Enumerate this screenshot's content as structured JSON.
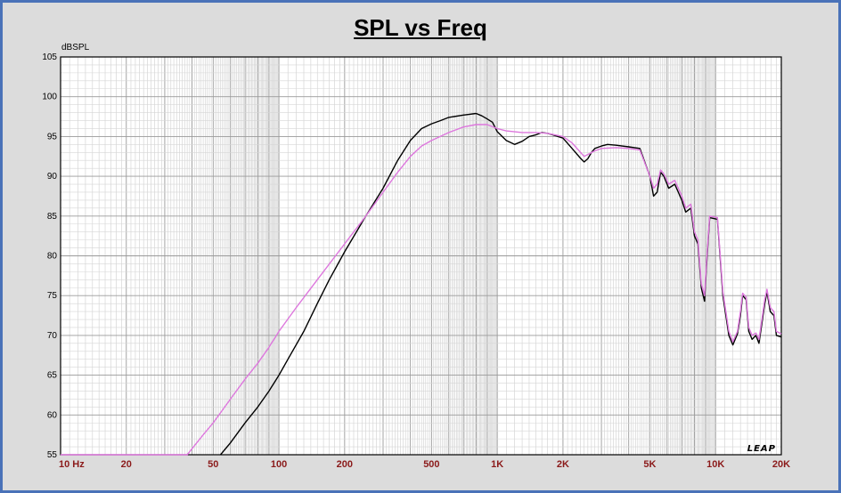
{
  "chart_data": {
    "type": "line",
    "title": "SPL vs Freq",
    "ylabel": "dBSPL",
    "xlabel": "",
    "x_scale": "log",
    "xlim": [
      10,
      20000
    ],
    "ylim": [
      55,
      105
    ],
    "grid": true,
    "y_ticks": [
      55,
      60,
      65,
      70,
      75,
      80,
      85,
      90,
      95,
      100,
      105
    ],
    "x_ticks": [
      {
        "value": 10,
        "label": "10  Hz"
      },
      {
        "value": 20,
        "label": "20"
      },
      {
        "value": 50,
        "label": "50"
      },
      {
        "value": 100,
        "label": "100"
      },
      {
        "value": 200,
        "label": "200"
      },
      {
        "value": 500,
        "label": "500"
      },
      {
        "value": 1000,
        "label": "1K"
      },
      {
        "value": 2000,
        "label": "2K"
      },
      {
        "value": 5000,
        "label": "5K"
      },
      {
        "value": 10000,
        "label": "10K"
      },
      {
        "value": 20000,
        "label": "20K"
      }
    ],
    "series": [
      {
        "color": "#000000",
        "points": [
          [
            54,
            55
          ],
          [
            60,
            56.5
          ],
          [
            70,
            59
          ],
          [
            80,
            61
          ],
          [
            90,
            63
          ],
          [
            100,
            65
          ],
          [
            110,
            67
          ],
          [
            130,
            70.5
          ],
          [
            150,
            74
          ],
          [
            170,
            77
          ],
          [
            200,
            80.5
          ],
          [
            250,
            85
          ],
          [
            300,
            88.5
          ],
          [
            350,
            92
          ],
          [
            400,
            94.5
          ],
          [
            450,
            96
          ],
          [
            500,
            96.6
          ],
          [
            550,
            97
          ],
          [
            600,
            97.4
          ],
          [
            700,
            97.7
          ],
          [
            800,
            97.9
          ],
          [
            850,
            97.6
          ],
          [
            900,
            97.2
          ],
          [
            950,
            96.8
          ],
          [
            1000,
            95.6
          ],
          [
            1100,
            94.5
          ],
          [
            1200,
            94
          ],
          [
            1300,
            94.4
          ],
          [
            1400,
            95
          ],
          [
            1500,
            95.2
          ],
          [
            1600,
            95.5
          ],
          [
            1700,
            95.4
          ],
          [
            1800,
            95.2
          ],
          [
            2000,
            94.8
          ],
          [
            2200,
            93.5
          ],
          [
            2400,
            92.3
          ],
          [
            2500,
            91.8
          ],
          [
            2600,
            92.2
          ],
          [
            2700,
            93
          ],
          [
            2800,
            93.5
          ],
          [
            3000,
            93.8
          ],
          [
            3200,
            94
          ],
          [
            3500,
            93.9
          ],
          [
            4000,
            93.7
          ],
          [
            4500,
            93.5
          ],
          [
            5000,
            90
          ],
          [
            5200,
            87.5
          ],
          [
            5400,
            88
          ],
          [
            5600,
            90.5
          ],
          [
            5800,
            90
          ],
          [
            6100,
            88.5
          ],
          [
            6500,
            89
          ],
          [
            7000,
            87
          ],
          [
            7300,
            85.5
          ],
          [
            7700,
            86
          ],
          [
            8000,
            82.5
          ],
          [
            8300,
            81.5
          ],
          [
            8600,
            76
          ],
          [
            8900,
            74.3
          ],
          [
            9100,
            79
          ],
          [
            9400,
            84.8
          ],
          [
            10200,
            84.6
          ],
          [
            10800,
            75
          ],
          [
            11500,
            70
          ],
          [
            12000,
            68.8
          ],
          [
            12600,
            70.2
          ],
          [
            13000,
            72.5
          ],
          [
            13300,
            75
          ],
          [
            13800,
            74.5
          ],
          [
            14200,
            70.5
          ],
          [
            14700,
            69.5
          ],
          [
            15300,
            70
          ],
          [
            15800,
            69
          ],
          [
            16300,
            71.5
          ],
          [
            16800,
            74
          ],
          [
            17200,
            75.5
          ],
          [
            17800,
            73
          ],
          [
            18500,
            72.5
          ],
          [
            19000,
            70
          ],
          [
            20000,
            69.8
          ]
        ]
      },
      {
        "color": "#dd77dd",
        "points": [
          [
            10,
            55
          ],
          [
            20,
            55
          ],
          [
            30,
            55
          ],
          [
            38,
            55
          ],
          [
            45,
            57.5
          ],
          [
            50,
            59
          ],
          [
            60,
            62
          ],
          [
            70,
            64.5
          ],
          [
            80,
            66.5
          ],
          [
            90,
            68.5
          ],
          [
            100,
            70.5
          ],
          [
            120,
            73.5
          ],
          [
            150,
            77
          ],
          [
            200,
            81.5
          ],
          [
            250,
            85
          ],
          [
            300,
            88
          ],
          [
            350,
            90.5
          ],
          [
            400,
            92.5
          ],
          [
            450,
            93.8
          ],
          [
            500,
            94.5
          ],
          [
            600,
            95.5
          ],
          [
            700,
            96.2
          ],
          [
            800,
            96.5
          ],
          [
            900,
            96.5
          ],
          [
            1000,
            96
          ],
          [
            1100,
            95.7
          ],
          [
            1300,
            95.5
          ],
          [
            1500,
            95.5
          ],
          [
            1700,
            95.4
          ],
          [
            2000,
            95
          ],
          [
            2200,
            94.2
          ],
          [
            2500,
            92.5
          ],
          [
            2800,
            93.2
          ],
          [
            3000,
            93.5
          ],
          [
            3500,
            93.6
          ],
          [
            4000,
            93.5
          ],
          [
            4500,
            93.3
          ],
          [
            5000,
            90
          ],
          [
            5200,
            88.5
          ],
          [
            5400,
            89
          ],
          [
            5600,
            90.8
          ],
          [
            5800,
            90.3
          ],
          [
            6100,
            89
          ],
          [
            6500,
            89.5
          ],
          [
            7000,
            87.5
          ],
          [
            7300,
            86
          ],
          [
            7700,
            86.5
          ],
          [
            8000,
            83
          ],
          [
            8300,
            82
          ],
          [
            8600,
            76.5
          ],
          [
            8900,
            75
          ],
          [
            9100,
            79.5
          ],
          [
            9400,
            85
          ],
          [
            10200,
            84.8
          ],
          [
            10800,
            75.5
          ],
          [
            11500,
            70.5
          ],
          [
            12000,
            69.2
          ],
          [
            12600,
            70.5
          ],
          [
            13000,
            73
          ],
          [
            13300,
            75.3
          ],
          [
            13800,
            74.8
          ],
          [
            14200,
            71
          ],
          [
            14700,
            70
          ],
          [
            15300,
            70.3
          ],
          [
            15800,
            69.5
          ],
          [
            16300,
            72
          ],
          [
            16800,
            74.5
          ],
          [
            17200,
            75.8
          ],
          [
            17800,
            73.5
          ],
          [
            18500,
            73
          ],
          [
            19000,
            70.5
          ],
          [
            20000,
            70.2
          ]
        ]
      }
    ],
    "logo": "LEAP"
  }
}
